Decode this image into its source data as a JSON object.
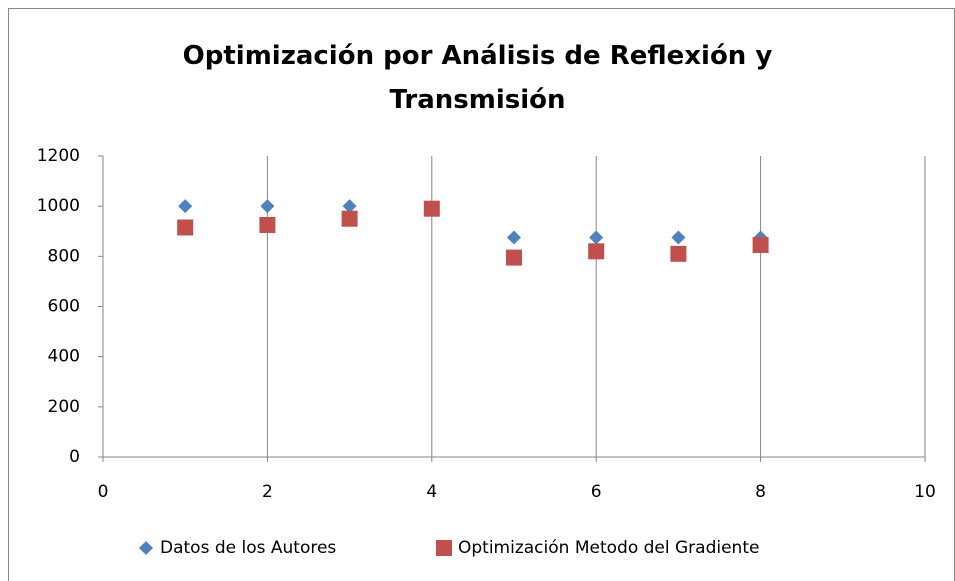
{
  "chart_data": {
    "type": "scatter",
    "title": "Optimización por Análisis de Reflexión y Transmisión",
    "series": [
      {
        "name": "Datos de los Autores",
        "color": "#4f81bd",
        "marker": "diamond",
        "x": [
          1,
          2,
          3,
          4,
          5,
          6,
          7,
          8
        ],
        "values": [
          1000,
          1000,
          1000,
          990,
          875,
          875,
          875,
          875
        ]
      },
      {
        "name": "Optimización Metodo del Gradiente",
        "color": "#c0504d",
        "marker": "square",
        "x": [
          1,
          2,
          3,
          4,
          5,
          6,
          7,
          8
        ],
        "values": [
          915,
          925,
          950,
          990,
          795,
          820,
          810,
          845
        ]
      }
    ],
    "xlim": [
      0,
      10
    ],
    "xticks": [
      0,
      2,
      4,
      6,
      8,
      10
    ],
    "ylim": [
      0,
      1200
    ],
    "yticks": [
      0,
      200,
      400,
      600,
      800,
      1000,
      1200
    ],
    "grid": "vertical",
    "legend": "bottom"
  }
}
